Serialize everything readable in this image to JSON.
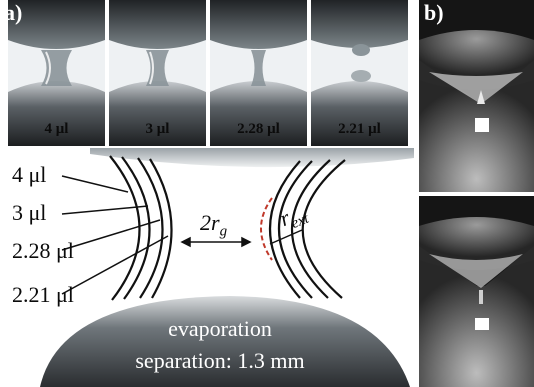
{
  "panel_a": {
    "letter": "a)",
    "frames": [
      {
        "volume": "4 μl"
      },
      {
        "volume": "3 μl"
      },
      {
        "volume": "2.28 μl"
      },
      {
        "volume": "2.21 μl"
      }
    ],
    "diagram": {
      "volume_labels": [
        "4 μl",
        "3 μl",
        "2.28 μl",
        "2.21 μl"
      ],
      "r_g_label": "2r",
      "r_g_sub": "g",
      "r_ext_label": "r",
      "r_ext_sub": "ext",
      "caption_line1": "evaporation",
      "caption_line2": "separation: 1.3 mm"
    }
  },
  "panel_b": {
    "letter": "b)"
  }
}
